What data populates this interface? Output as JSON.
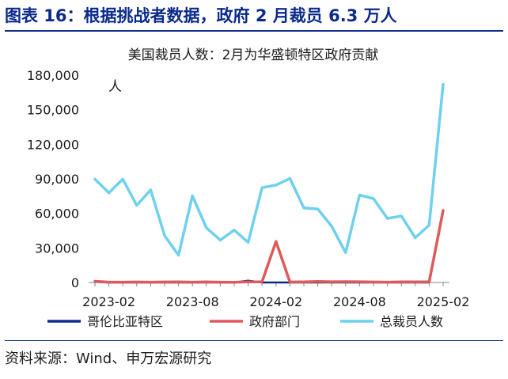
{
  "figure_title": "图表 16：根据挑战者数据，政府 2 月裁员 6.3 万人",
  "source": "资料来源：Wind、申万宏源研究",
  "colors": {
    "title": "#0b2a8a",
    "dc": "#0b2a8a",
    "gov": "#e05a5a",
    "total": "#6fd0f0",
    "axis": "#888888"
  },
  "chart_data": {
    "type": "line",
    "title": "美国裁员人数：2月为华盛顿特区政府贡献",
    "unit": "人",
    "ylim": [
      0,
      180000
    ],
    "y_ticks": [
      "0",
      "30,000",
      "60,000",
      "90,000",
      "120,000",
      "150,000",
      "180,000"
    ],
    "x_ticks": [
      "2023-02",
      "2023-08",
      "2024-02",
      "2024-08",
      "2025-02"
    ],
    "x": [
      "2023-01",
      "2023-02",
      "2023-03",
      "2023-04",
      "2023-05",
      "2023-06",
      "2023-07",
      "2023-08",
      "2023-09",
      "2023-10",
      "2023-11",
      "2023-12",
      "2024-01",
      "2024-02",
      "2024-03",
      "2024-04",
      "2024-05",
      "2024-06",
      "2024-07",
      "2024-08",
      "2024-09",
      "2024-10",
      "2024-11",
      "2024-12",
      "2025-01",
      "2025-02"
    ],
    "series": [
      {
        "name": "哥伦比亚特区",
        "color": "#0b2a8a",
        "values": [
          500,
          0,
          0,
          0,
          0,
          0,
          0,
          0,
          0,
          0,
          0,
          1500,
          0,
          0,
          0,
          0,
          0,
          0,
          0,
          0,
          0,
          0,
          0,
          0,
          0,
          61500
        ]
      },
      {
        "name": "政府部门",
        "color": "#e05a5a",
        "values": [
          1000,
          300,
          300,
          400,
          300,
          400,
          500,
          300,
          500,
          300,
          200,
          500,
          600,
          35600,
          400,
          500,
          800,
          600,
          700,
          600,
          400,
          300,
          500,
          500,
          600,
          62500
        ]
      },
      {
        "name": "总裁员人数",
        "color": "#6fd0f0",
        "values": [
          89700,
          77800,
          89700,
          66900,
          80400,
          40700,
          23700,
          75200,
          47500,
          36800,
          45500,
          34800,
          82300,
          84600,
          90300,
          64800,
          63800,
          48800,
          25900,
          75900,
          72800,
          55600,
          57700,
          38800,
          49800,
          172000
        ]
      }
    ]
  }
}
